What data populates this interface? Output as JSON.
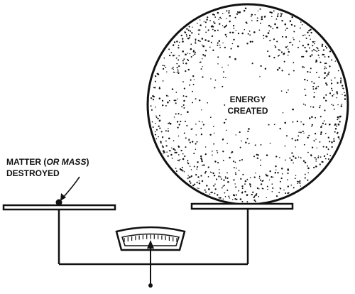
{
  "labels": {
    "energy_line1": "ENERGY",
    "energy_line2": "CREATED",
    "matter_prefix": "MATTER (",
    "matter_italic": "OR MASS",
    "matter_suffix": ")",
    "destroyed": "DESTROYED"
  },
  "colors": {
    "ink": "#111111",
    "paper": "#ffffff"
  }
}
